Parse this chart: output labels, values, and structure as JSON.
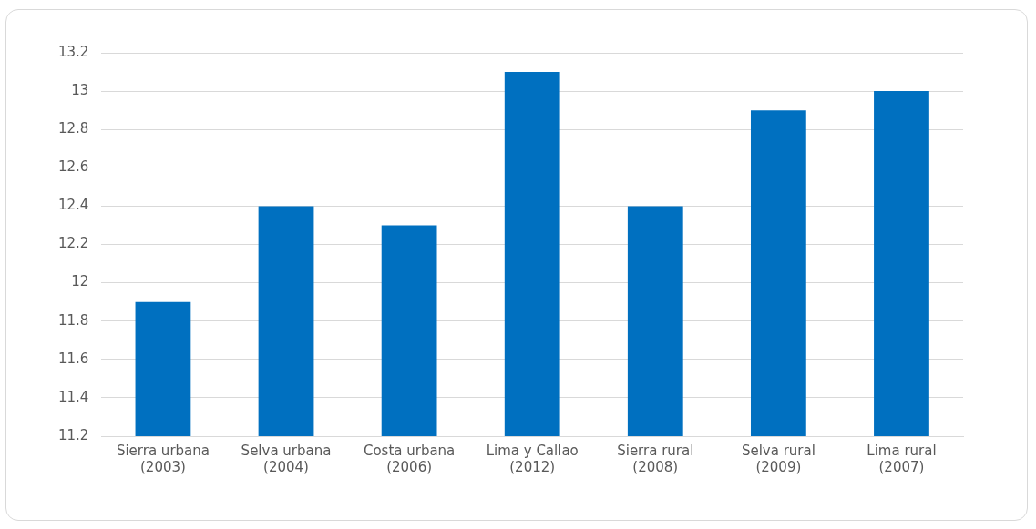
{
  "chart_data": {
    "type": "bar",
    "categories": [
      "Sierra urbana (2003)",
      "Selva urbana (2004)",
      "Costa urbana (2006)",
      "Lima y Callao (2012)",
      "Sierra rural (2008)",
      "Selva rural (2009)",
      "Lima rural (2007)"
    ],
    "values": [
      11.9,
      12.4,
      12.3,
      13.1,
      12.4,
      12.9,
      13.0
    ],
    "color": "#0070c0",
    "ylim": [
      11.2,
      13.2
    ],
    "yticks": [
      11.2,
      11.4,
      11.6,
      11.8,
      12,
      12.2,
      12.4,
      12.6,
      12.8,
      13,
      13.2
    ],
    "grid": "y"
  }
}
